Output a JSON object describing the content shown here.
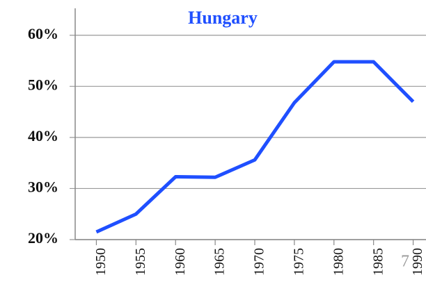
{
  "chart_data": {
    "type": "line",
    "title": "Hungary",
    "x": [
      1950,
      1955,
      1960,
      1965,
      1970,
      1975,
      1980,
      1985,
      1990
    ],
    "series": [
      {
        "name": "Hungary",
        "color": "#1f4fff",
        "values": [
          21.5,
          25,
          32.3,
          32.2,
          35.6,
          46.8,
          54.8,
          54.8,
          47
        ]
      }
    ],
    "xlim": [
      1947.5,
      1992.5
    ],
    "xticks": [
      1950,
      1955,
      1960,
      1965,
      1970,
      1975,
      1980,
      1985,
      1990
    ],
    "ylim": [
      20,
      65
    ],
    "yticks": [
      {
        "value": 20,
        "label": "20%"
      },
      {
        "value": 30,
        "label": "30%"
      },
      {
        "value": 40,
        "label": "40%"
      },
      {
        "value": 50,
        "label": "50%"
      },
      {
        "value": 60,
        "label": "60%"
      }
    ],
    "grid": true
  },
  "slide_number": "7"
}
